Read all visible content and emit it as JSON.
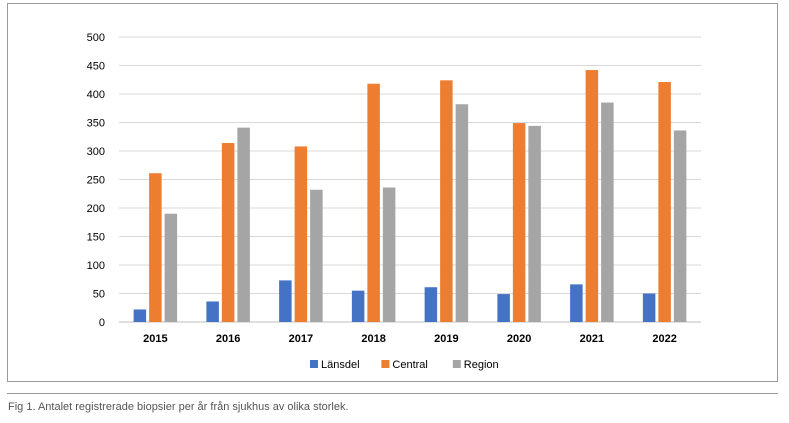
{
  "chart_data": {
    "type": "bar",
    "categories": [
      "2015",
      "2016",
      "2017",
      "2018",
      "2019",
      "2020",
      "2021",
      "2022"
    ],
    "series": [
      {
        "name": "Länsdel",
        "color": "#4472c4",
        "values": [
          22,
          36,
          73,
          55,
          61,
          49,
          66,
          50
        ]
      },
      {
        "name": "Central",
        "color": "#ed7d31",
        "values": [
          261,
          314,
          308,
          418,
          424,
          349,
          442,
          421
        ]
      },
      {
        "name": "Region",
        "color": "#a5a5a5",
        "values": [
          190,
          341,
          232,
          236,
          382,
          344,
          385,
          336
        ]
      }
    ],
    "ylim": [
      0,
      500
    ],
    "yticks": [
      0,
      50,
      100,
      150,
      200,
      250,
      300,
      350,
      400,
      450,
      500
    ],
    "grid": true,
    "legend": "bottom",
    "title": "",
    "xlabel": "",
    "ylabel": ""
  },
  "caption": "Fig 1. Antalet registrerade biopsier per år från sjukhus av olika storlek."
}
